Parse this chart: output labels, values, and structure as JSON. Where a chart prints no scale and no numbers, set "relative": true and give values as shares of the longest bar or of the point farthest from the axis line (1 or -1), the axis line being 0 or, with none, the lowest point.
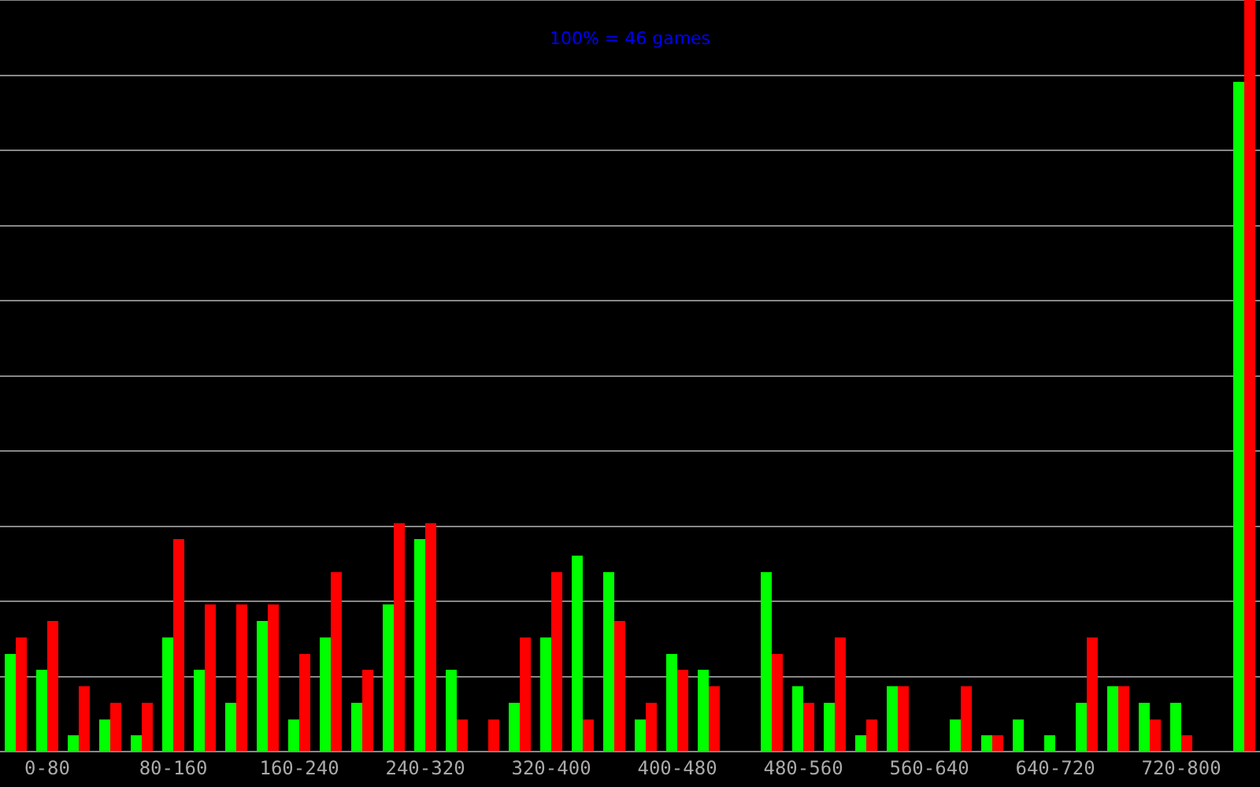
{
  "chart_data": {
    "type": "bar",
    "relative": true,
    "grid": "y",
    "annotations": [
      "100% = 46 games"
    ],
    "categories": [
      null,
      "0-80",
      null,
      null,
      null,
      "80-160",
      null,
      null,
      null,
      "160-240",
      null,
      null,
      null,
      "240-320",
      null,
      null,
      null,
      "320-400",
      null,
      null,
      null,
      "400-480",
      null,
      null,
      null,
      "480-560",
      null,
      null,
      null,
      "560-640",
      null,
      null,
      null,
      "640-720",
      null,
      null,
      null,
      "720-800",
      null,
      null
    ],
    "series": [
      {
        "color": "#00ff00",
        "values": [
          0.13,
          0.109,
          0.022,
          0.043,
          0.022,
          0.152,
          0.109,
          0.065,
          0.174,
          0.043,
          0.152,
          0.065,
          0.196,
          0.283,
          0.109,
          0,
          0.065,
          0.152,
          0.261,
          0.239,
          0.043,
          0.13,
          0.109,
          0,
          0.239,
          0.087,
          0.065,
          0.022,
          0.087,
          0,
          0.043,
          0.022,
          0.043,
          0.022,
          0.065,
          0.087,
          0.065,
          0.065,
          0,
          0.891
        ]
      },
      {
        "color": "#ff0000",
        "values": [
          0.152,
          0.174,
          0.087,
          0.065,
          0.065,
          0.283,
          0.196,
          0.196,
          0.196,
          0.13,
          0.239,
          0.109,
          0.304,
          0.304,
          0.043,
          0.043,
          0.152,
          0.239,
          0.043,
          0.174,
          0.065,
          0.109,
          0.087,
          0,
          0.13,
          0.065,
          0.152,
          0.043,
          0.087,
          0,
          0.087,
          0.022,
          0,
          0,
          0.152,
          0.087,
          0.043,
          0.022,
          0,
          1
        ]
      }
    ]
  }
}
